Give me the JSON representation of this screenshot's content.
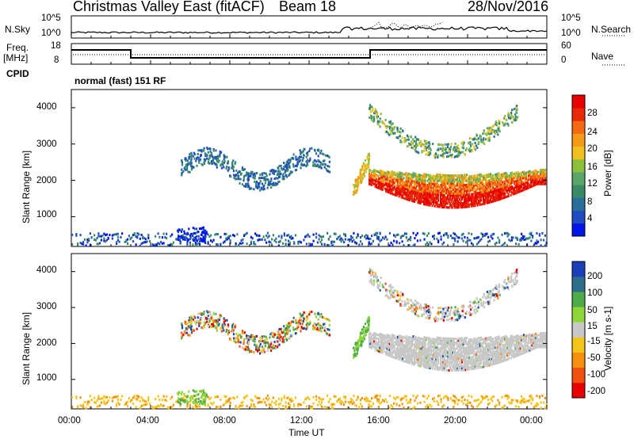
{
  "header": {
    "title": "Christmas Valley East (fitACF)",
    "beam": "Beam 18",
    "date": "28/Nov/2016"
  },
  "aux_panels": {
    "nsky_label": "N.Sky",
    "nsky_ticks": [
      "10^5",
      "10^0"
    ],
    "nsearch_label": "N.Search",
    "nsearch_ticks": [
      "10^5",
      "10^0"
    ],
    "freq_label_1": "Freq.",
    "freq_label_2": "[MHz]",
    "freq_ticks": [
      "18",
      "8"
    ],
    "nave_label": "Nave",
    "nave_ticks": [
      "60",
      "0"
    ],
    "cpid_label": "CPID",
    "cpid_text": "normal (fast) 151 RF"
  },
  "colors": {
    "power": [
      "#0015e6",
      "#1f4cc0",
      "#2a6e9a",
      "#3a8a6a",
      "#5aa56a",
      "#8cbf3c",
      "#f0c020",
      "#f59a18",
      "#f56a10",
      "#e82a08",
      "#e80000"
    ],
    "velocity": [
      "#e80000",
      "#f05010",
      "#f5900f",
      "#f5c41a",
      "#c8c8c8",
      "#8fd63a",
      "#4eab48",
      "#2e6e8a",
      "#1a3fb8"
    ]
  },
  "chart_data": [
    {
      "type": "heatmap",
      "panel": "power",
      "xlabel": "",
      "ylabel": "Slant Range [km]",
      "xlim": [
        "00:00",
        "00:00"
      ],
      "ylim": [
        180,
        4500
      ],
      "y_ticks": [
        "1000",
        "2000",
        "3000",
        "4000"
      ],
      "colorbar": {
        "label": "Power [dB]",
        "ticks": [
          "4",
          "8",
          "12",
          "16",
          "20",
          "24",
          "28"
        ],
        "range": [
          0,
          32
        ]
      }
    },
    {
      "type": "heatmap",
      "panel": "velocity",
      "xlabel": "Time UT",
      "ylabel": "Slant Range [km]",
      "x_ticks": [
        "00:00",
        "04:00",
        "08:00",
        "12:00",
        "16:00",
        "20:00",
        "00:00"
      ],
      "y_ticks": [
        "1000",
        "2000",
        "3000",
        "4000"
      ],
      "ylim": [
        180,
        4500
      ],
      "colorbar": {
        "label": "Velocity [m s-1]",
        "ticks": [
          "200",
          "100",
          "50",
          "15",
          "-15",
          "-50",
          "-100",
          "-200"
        ],
        "range": [
          -250,
          250
        ]
      }
    }
  ]
}
